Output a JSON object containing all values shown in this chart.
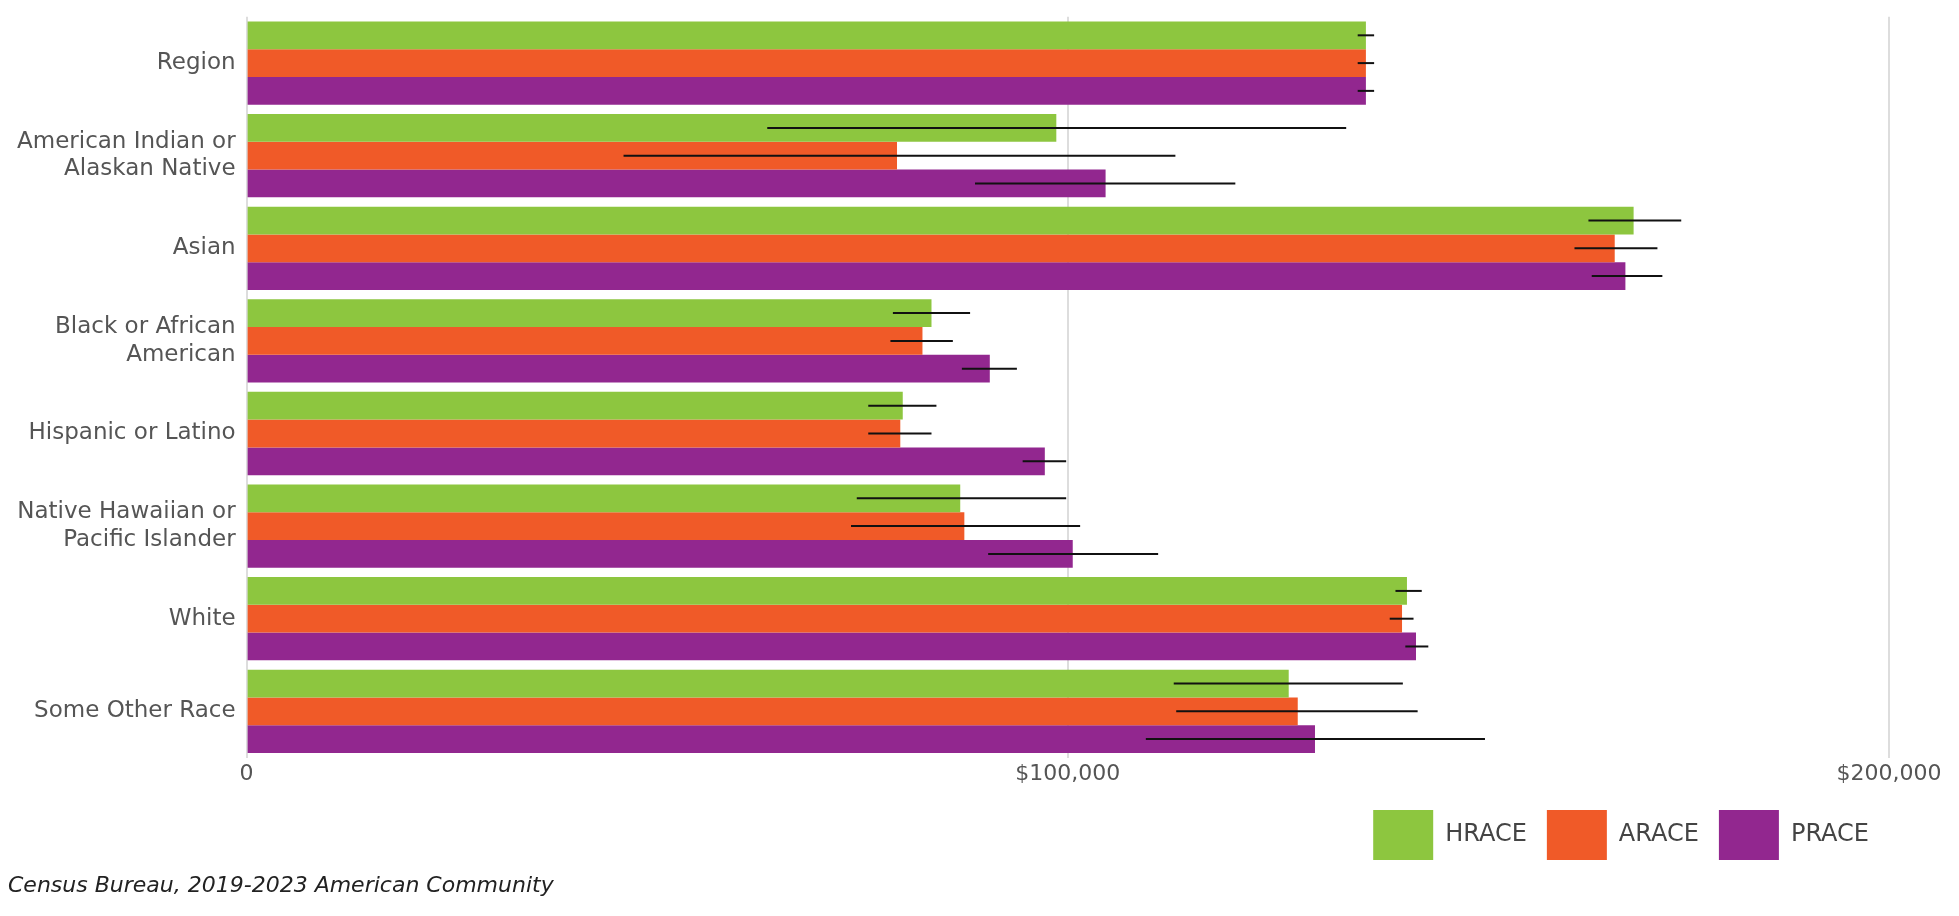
{
  "chart_data": {
    "type": "bar",
    "orientation": "horizontal",
    "categories": [
      "Region",
      "American Indian or Alaskan Native",
      "Asian",
      "Black or African American",
      "Hispanic or Latino",
      "Native Hawaiian or Pacific Islander",
      "White",
      "Some Other Race"
    ],
    "series": [
      {
        "name": "HRACE",
        "color": "#8dc63f",
        "values": [
          136300,
          98600,
          168900,
          83400,
          79900,
          86900,
          141300,
          126900
        ],
        "errors": [
          [
            135300,
            137300
          ],
          [
            63400,
            133900
          ],
          [
            163400,
            174700
          ],
          [
            78700,
            88100
          ],
          [
            75700,
            84000
          ],
          [
            74300,
            99800
          ],
          [
            139900,
            143100
          ],
          [
            112900,
            140800
          ]
        ]
      },
      {
        "name": "ARACE",
        "color": "#f05a28",
        "values": [
          136300,
          79200,
          166600,
          82300,
          79600,
          87400,
          140700,
          128000
        ],
        "errors": [
          [
            135300,
            137300
          ],
          [
            45900,
            113100
          ],
          [
            161700,
            171800
          ],
          [
            78400,
            86000
          ],
          [
            75700,
            83400
          ],
          [
            73600,
            101500
          ],
          [
            139200,
            142100
          ],
          [
            113200,
            142600
          ]
        ]
      },
      {
        "name": "PRACE",
        "color": "#92278f",
        "values": [
          136300,
          104600,
          167900,
          90500,
          97200,
          100600,
          142400,
          130100
        ],
        "errors": [
          [
            135300,
            137300
          ],
          [
            88700,
            120400
          ],
          [
            163800,
            172400
          ],
          [
            87100,
            93800
          ],
          [
            94500,
            99800
          ],
          [
            90300,
            111000
          ],
          [
            141100,
            143900
          ],
          [
            109500,
            150800
          ]
        ]
      }
    ],
    "xlim": [
      0,
      200000
    ],
    "xticks": [
      0,
      {
        "value": 100000,
        "label": "$100,000"
      },
      {
        "value": 200000,
        "label": "$200,000"
      }
    ],
    "grid": "x",
    "legend": "bottom",
    "annotations": [
      "Census Bureau, 2019-2023 American Community"
    ]
  }
}
